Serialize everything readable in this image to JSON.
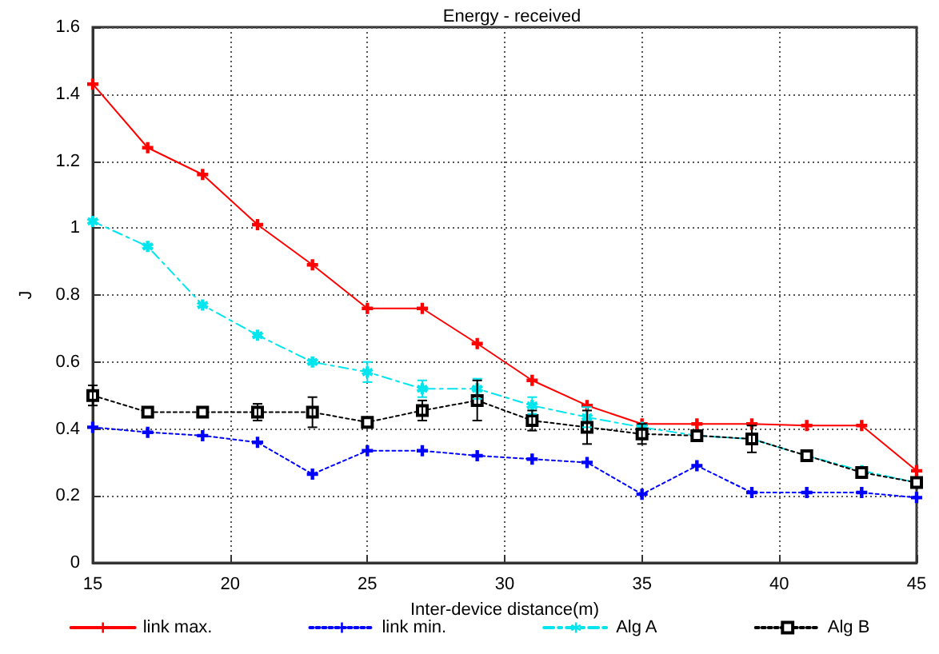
{
  "chart_data": {
    "type": "line",
    "title": "Energy - received",
    "xlabel": "Inter-device distance(m)",
    "ylabel": "J",
    "x": [
      15,
      17,
      19,
      21,
      23,
      25,
      27,
      29,
      31,
      33,
      35,
      37,
      39,
      41,
      43,
      45
    ],
    "series": [
      {
        "name": "link max.",
        "color": "#ff0000",
        "line_style": "solid",
        "marker": "cross",
        "values": [
          1.43,
          1.24,
          1.16,
          1.01,
          0.89,
          0.76,
          0.76,
          0.655,
          0.545,
          0.47,
          0.415,
          0.415,
          0.415,
          0.41,
          0.41,
          0.275
        ]
      },
      {
        "name": "link min.",
        "color": "#0000ff",
        "line_style": "dotted",
        "marker": "cross",
        "values": [
          0.405,
          0.39,
          0.38,
          0.36,
          0.265,
          0.335,
          0.335,
          0.32,
          0.31,
          0.3,
          0.205,
          0.29,
          0.21,
          0.21,
          0.21,
          0.195
        ]
      },
      {
        "name": "Alg A",
        "color": "#00e5ee",
        "line_style": "dashed",
        "marker": "star",
        "values": [
          1.02,
          0.945,
          0.77,
          0.68,
          0.6,
          0.57,
          0.52,
          0.52,
          0.47,
          0.435,
          0.405,
          0.38,
          0.37,
          0.32,
          0.275,
          0.24
        ],
        "errors": [
          null,
          null,
          null,
          null,
          null,
          0.03,
          0.025,
          0.03,
          0.025,
          0.03,
          null,
          null,
          null,
          null,
          null,
          null
        ]
      },
      {
        "name": "Alg B",
        "color": "#000000",
        "line_style": "dotted",
        "marker": "square",
        "values": [
          0.5,
          0.45,
          0.45,
          0.45,
          0.45,
          0.42,
          0.455,
          0.485,
          0.425,
          0.405,
          0.385,
          0.38,
          0.37,
          0.32,
          0.27,
          0.24
        ],
        "errors": [
          0.03,
          null,
          null,
          0.025,
          0.045,
          null,
          0.03,
          0.06,
          0.03,
          0.05,
          0.03,
          null,
          0.04,
          null,
          null,
          null
        ]
      }
    ],
    "xlim": [
      15,
      45
    ],
    "xticks": [
      15,
      20,
      25,
      30,
      35,
      40,
      45
    ],
    "ylim": [
      0,
      1.6
    ],
    "yticks": [
      0,
      0.2,
      0.4,
      0.6,
      0.8,
      1,
      1.2,
      1.4,
      1.6
    ],
    "grid": true,
    "legend": "bottom"
  }
}
